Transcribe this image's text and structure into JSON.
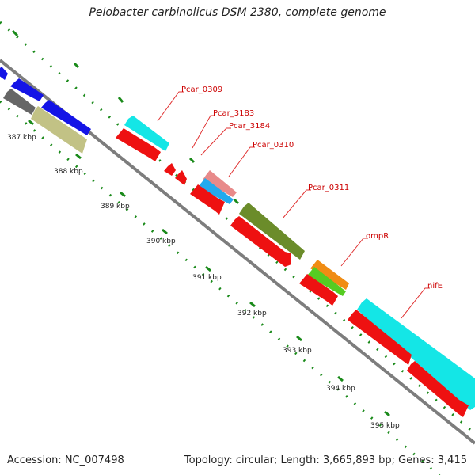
{
  "title": "Pelobacter carbinolicus DSM 2380, complete genome",
  "footer": {
    "accession": "Accession: NC_007498",
    "summary": "Topology: circular; Length: 3,665,893 bp; Genes: 3,415"
  },
  "scale_ticks": [
    "387 kbp",
    "388 kbp",
    "389 kbp",
    "390 kbp",
    "391 kbp",
    "392 kbp",
    "393 kbp",
    "394 kbp",
    "395 kbp"
  ],
  "gene_labels": [
    "Pcar_0309",
    "Pcar_3183",
    "Pcar_3184",
    "Pcar_0310",
    "Pcar_0311",
    "ompR",
    "nifE"
  ],
  "colors": {
    "backbone": "#7d7d7d",
    "scale_dots": "#1a8a1a",
    "label_text": "#cc0000",
    "callout_line": "#e03030",
    "blue": "#1414e6",
    "gray": "#666666",
    "khaki": "#c2c285",
    "cyan": "#14e6e6",
    "red": "#ee1111",
    "pink": "#e88a8a",
    "sky": "#22aaee",
    "olive": "#6b8c2a",
    "orange": "#f08c14",
    "green": "#55cc22"
  }
}
